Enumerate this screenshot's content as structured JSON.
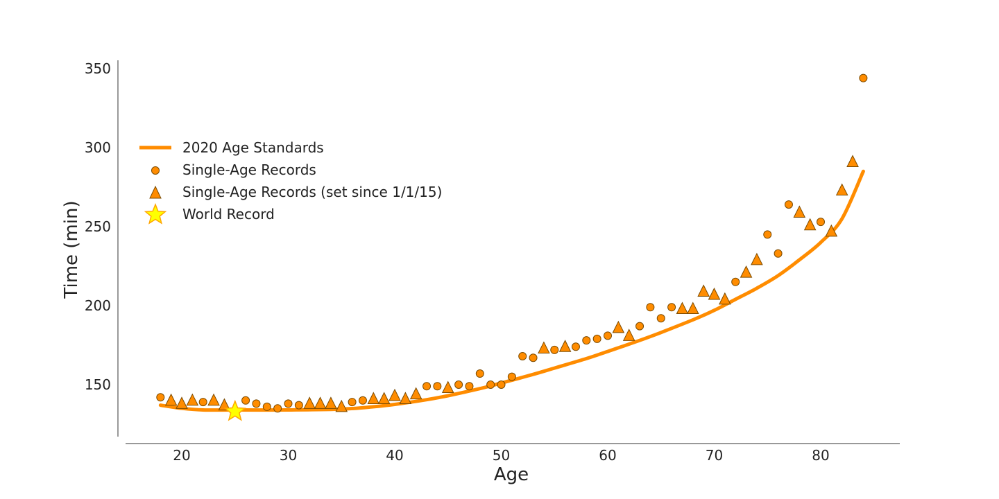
{
  "chart_data": {
    "type": "scatter",
    "title": "",
    "xlabel": "Age",
    "ylabel": "Time (min)",
    "xlim": [
      15,
      88
    ],
    "ylim": [
      120,
      356
    ],
    "x_ticks": [
      20,
      30,
      40,
      50,
      60,
      70,
      80
    ],
    "y_ticks": [
      150,
      200,
      250,
      300,
      350
    ],
    "grid": false,
    "legend_position": "upper-left",
    "colors": {
      "line": "#ff8c00",
      "marker_fill": "#ff8c00",
      "marker_edge": "#7a4a00",
      "star_fill": "#ffff00",
      "star_edge": "#ffa500",
      "axis": "#333333"
    },
    "series": [
      {
        "name": "2020 Age Standards",
        "kind": "line",
        "points": [
          [
            18,
            137
          ],
          [
            20,
            135
          ],
          [
            22,
            134
          ],
          [
            25,
            134
          ],
          [
            30,
            134
          ],
          [
            35,
            134.5
          ],
          [
            38,
            136
          ],
          [
            40,
            137.5
          ],
          [
            43,
            140.5
          ],
          [
            45,
            143
          ],
          [
            48,
            147.5
          ],
          [
            50,
            151
          ],
          [
            53,
            156.5
          ],
          [
            55,
            160.5
          ],
          [
            58,
            166.5
          ],
          [
            60,
            171
          ],
          [
            63,
            178
          ],
          [
            65,
            183
          ],
          [
            68,
            191
          ],
          [
            70,
            197
          ],
          [
            72,
            204
          ],
          [
            74,
            211
          ],
          [
            76,
            219
          ],
          [
            78,
            229
          ],
          [
            80,
            240
          ],
          [
            82,
            255
          ],
          [
            84,
            285
          ]
        ]
      },
      {
        "name": "Single-Age Records",
        "kind": "scatter",
        "marker": "circle",
        "points": [
          [
            18,
            142
          ],
          [
            22,
            139
          ],
          [
            26,
            140
          ],
          [
            27,
            138
          ],
          [
            28,
            136
          ],
          [
            29,
            135
          ],
          [
            30,
            138
          ],
          [
            31,
            137
          ],
          [
            36,
            139
          ],
          [
            37,
            140
          ],
          [
            43,
            149
          ],
          [
            44,
            149
          ],
          [
            46,
            150
          ],
          [
            47,
            149
          ],
          [
            48,
            157
          ],
          [
            49,
            150
          ],
          [
            50,
            150
          ],
          [
            51,
            155
          ],
          [
            52,
            168
          ],
          [
            53,
            167
          ],
          [
            55,
            172
          ],
          [
            57,
            174
          ],
          [
            58,
            178
          ],
          [
            59,
            179
          ],
          [
            60,
            181
          ],
          [
            63,
            187
          ],
          [
            64,
            199
          ],
          [
            65,
            192
          ],
          [
            66,
            199
          ],
          [
            72,
            215
          ],
          [
            75,
            245
          ],
          [
            76,
            233
          ],
          [
            77,
            264
          ],
          [
            80,
            253
          ],
          [
            84,
            344
          ]
        ]
      },
      {
        "name": "Single-Age Records (set since 1/1/15)",
        "kind": "scatter",
        "marker": "triangle",
        "points": [
          [
            19,
            140
          ],
          [
            20,
            138
          ],
          [
            21,
            140
          ],
          [
            23,
            140
          ],
          [
            24,
            137
          ],
          [
            32,
            138
          ],
          [
            33,
            138
          ],
          [
            34,
            138
          ],
          [
            35,
            136
          ],
          [
            38,
            141
          ],
          [
            39,
            141
          ],
          [
            40,
            143
          ],
          [
            41,
            141
          ],
          [
            42,
            144
          ],
          [
            45,
            148
          ],
          [
            54,
            173
          ],
          [
            56,
            174
          ],
          [
            61,
            186
          ],
          [
            62,
            181
          ],
          [
            67,
            198
          ],
          [
            68,
            198
          ],
          [
            69,
            209
          ],
          [
            70,
            207
          ],
          [
            71,
            204
          ],
          [
            73,
            221
          ],
          [
            74,
            229
          ],
          [
            78,
            259
          ],
          [
            79,
            251
          ],
          [
            81,
            247
          ],
          [
            82,
            273
          ],
          [
            83,
            291
          ]
        ]
      },
      {
        "name": "World Record",
        "kind": "scatter",
        "marker": "star",
        "points": [
          [
            25,
            133
          ]
        ]
      }
    ]
  }
}
